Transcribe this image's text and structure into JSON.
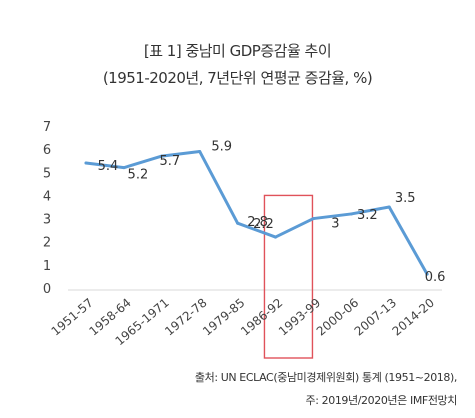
{
  "title": "[표 1] 중남미 GDP증감율 추이",
  "subtitle": "(1951-2020년, 7년단위 연평균 증감율, %)",
  "source_line1": "출처: UN ECLAC(중남미경제위원회) 통계 (1951~2018),",
  "source_line2": "주: 2019년/2020년은 IMF전망치",
  "chart_data": {
    "type": "line",
    "title": "[표 1] 중남미 GDP증감율 추이",
    "subtitle": "(1951-2020년, 7년단위 연평균 증감율, %)",
    "categories": [
      "1951-57",
      "1958-64",
      "1965-1971",
      "1972-78",
      "1979-85",
      "1986-92",
      "1993-99",
      "2000-06",
      "2007-13",
      "2014-20"
    ],
    "values": [
      5.4,
      5.2,
      5.7,
      5.9,
      2.8,
      2.2,
      3.0,
      3.2,
      3.5,
      0.6
    ],
    "data_labels": [
      "5.4",
      "5.2",
      "5.7",
      "5.9",
      "2.8",
      "2.2",
      "3",
      "3.2",
      "3.5",
      "0.6"
    ],
    "yticks": [
      "0",
      "1",
      "2",
      "3",
      "4",
      "5",
      "6",
      "7"
    ],
    "ylim": [
      0,
      7
    ],
    "grid": false,
    "legend": "none",
    "line_color": "#5b9bd5",
    "highlight_category": "1986-92",
    "highlight_color": "#e0525a"
  }
}
